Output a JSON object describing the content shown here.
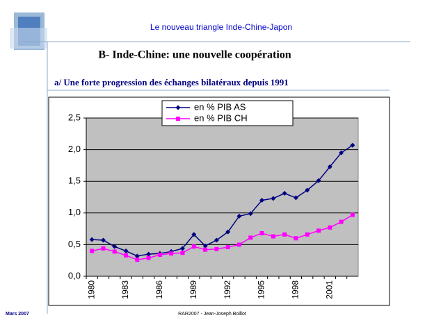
{
  "slide": {
    "header": "Le nouveau triangle Inde-Chine-Japon",
    "title": "B- Inde-Chine: une nouvelle coopération",
    "subtitle": "a/ Une forte progression des échanges bilatéraux depuis 1991",
    "footer_left": "Mars 2007",
    "footer_center": "RAR2007 - Jean-Joseph Boillot"
  },
  "chart_data": {
    "type": "line",
    "categories": [
      "1980",
      null,
      null,
      "1983",
      null,
      null,
      "1986",
      null,
      null,
      "1989",
      null,
      null,
      "1992",
      null,
      null,
      "1995",
      null,
      null,
      "1998",
      null,
      null,
      "2001",
      null,
      null
    ],
    "series": [
      {
        "name": "en % PIB AS",
        "color": "#000080",
        "marker": "diamond",
        "values": [
          0.58,
          0.57,
          0.47,
          0.4,
          0.32,
          0.35,
          0.36,
          0.39,
          0.44,
          0.66,
          0.48,
          0.57,
          0.7,
          0.95,
          0.99,
          1.2,
          1.23,
          1.31,
          1.24,
          1.36,
          1.51,
          1.73,
          1.95,
          2.07
        ]
      },
      {
        "name": "en % PIB CH",
        "color": "#ff00ff",
        "marker": "square",
        "values": [
          0.4,
          0.44,
          0.39,
          0.33,
          0.26,
          0.29,
          0.34,
          0.36,
          0.37,
          0.47,
          0.42,
          0.43,
          0.46,
          0.5,
          0.61,
          0.68,
          0.63,
          0.66,
          0.6,
          0.66,
          0.72,
          0.77,
          0.86,
          0.97
        ]
      }
    ],
    "ylim": [
      0,
      2.5
    ],
    "yticks": [
      {
        "value": 0,
        "label": "0,0"
      },
      {
        "value": 0.5,
        "label": "0,5"
      },
      {
        "value": 1,
        "label": "1,0"
      },
      {
        "value": 1.5,
        "label": "1,5"
      },
      {
        "value": 2,
        "label": "2,0"
      },
      {
        "value": 2.5,
        "label": "2,5"
      }
    ],
    "grid": true,
    "legend": "top"
  }
}
